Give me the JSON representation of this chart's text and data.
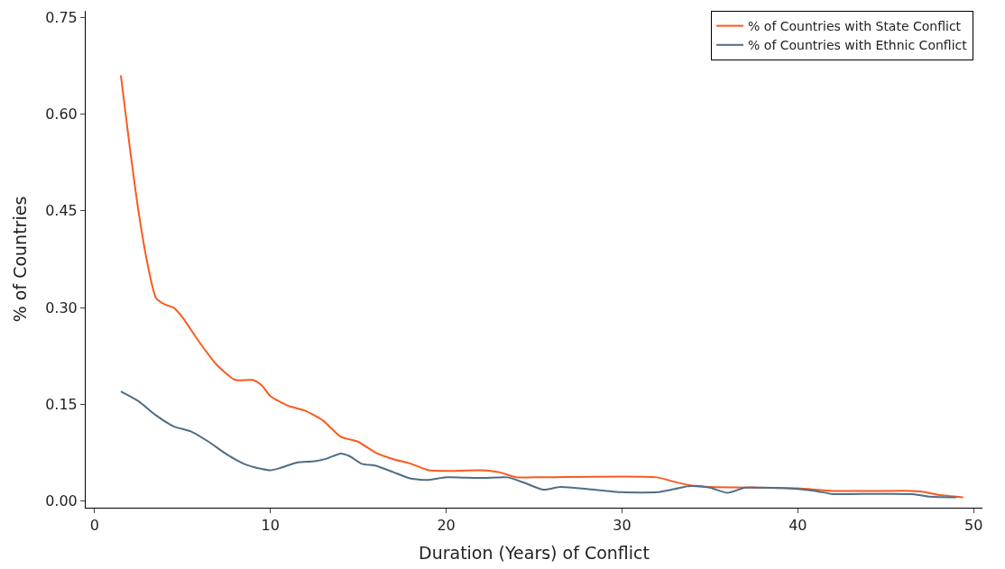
{
  "chart_data": {
    "type": "line",
    "xlabel": "Duration (Years) of Conflict",
    "ylabel": "% of Countries",
    "xlim": [
      -0.5,
      50.5
    ],
    "xticks": [
      0,
      10,
      20,
      30,
      40,
      50
    ],
    "ylim": [
      -0.01,
      0.76
    ],
    "yticks": [
      {
        "value": 0,
        "label": "0.00"
      },
      {
        "value": 0.15,
        "label": "0.15"
      },
      {
        "value": 0.3,
        "label": "0.30"
      },
      {
        "value": 0.45,
        "label": "0.45"
      },
      {
        "value": 0.6,
        "label": "0.60"
      },
      {
        "value": 0.75,
        "label": "0.75"
      }
    ],
    "legend": "top right",
    "marker": "none",
    "line_style": "solid",
    "series": [
      {
        "name": "% of Countries with State Conflict",
        "color": "#fa5a1e",
        "x": [
          1.5,
          2.0,
          2.5,
          3.0,
          3.5,
          4.0,
          4.5,
          5,
          6,
          7,
          8,
          9,
          9.5,
          10,
          11,
          12,
          13,
          14,
          15,
          16,
          17,
          18,
          19,
          20,
          22,
          23,
          24,
          25,
          32,
          33,
          34,
          35,
          40,
          42,
          46.5,
          47,
          48,
          49.4
        ],
        "values": [
          0.66,
          0.55,
          0.45,
          0.37,
          0.315,
          0.305,
          0.3,
          0.285,
          0.245,
          0.21,
          0.188,
          0.188,
          0.18,
          0.163,
          0.148,
          0.14,
          0.125,
          0.1,
          0.092,
          0.075,
          0.065,
          0.058,
          0.048,
          0.047,
          0.048,
          0.045,
          0.037,
          0.037,
          0.037,
          0.03,
          0.024,
          0.022,
          0.02,
          0.016,
          0.016,
          0.015,
          0.01,
          0.006
        ]
      },
      {
        "name": "% of Countries with Ethnic Conflict",
        "color": "#4f6d85",
        "x": [
          1.5,
          2.5,
          3.5,
          4.5,
          5.5,
          6.5,
          7.5,
          8.5,
          9.5,
          10,
          10.5,
          11.5,
          12.5,
          13.2,
          14,
          14.5,
          15.2,
          16,
          17,
          18,
          19,
          20,
          22,
          23.5,
          24.5,
          25.5,
          26.5,
          28,
          30,
          32,
          33,
          34,
          35,
          36,
          37,
          38,
          40,
          41,
          42,
          43,
          46.5,
          47.5,
          49
        ],
        "values": [
          0.17,
          0.155,
          0.133,
          0.116,
          0.108,
          0.092,
          0.073,
          0.058,
          0.05,
          0.048,
          0.051,
          0.06,
          0.062,
          0.066,
          0.074,
          0.07,
          0.058,
          0.055,
          0.045,
          0.035,
          0.033,
          0.037,
          0.036,
          0.037,
          0.028,
          0.018,
          0.022,
          0.019,
          0.014,
          0.014,
          0.019,
          0.024,
          0.021,
          0.013,
          0.021,
          0.021,
          0.019,
          0.016,
          0.011,
          0.011,
          0.011,
          0.007,
          0.006
        ]
      }
    ]
  }
}
